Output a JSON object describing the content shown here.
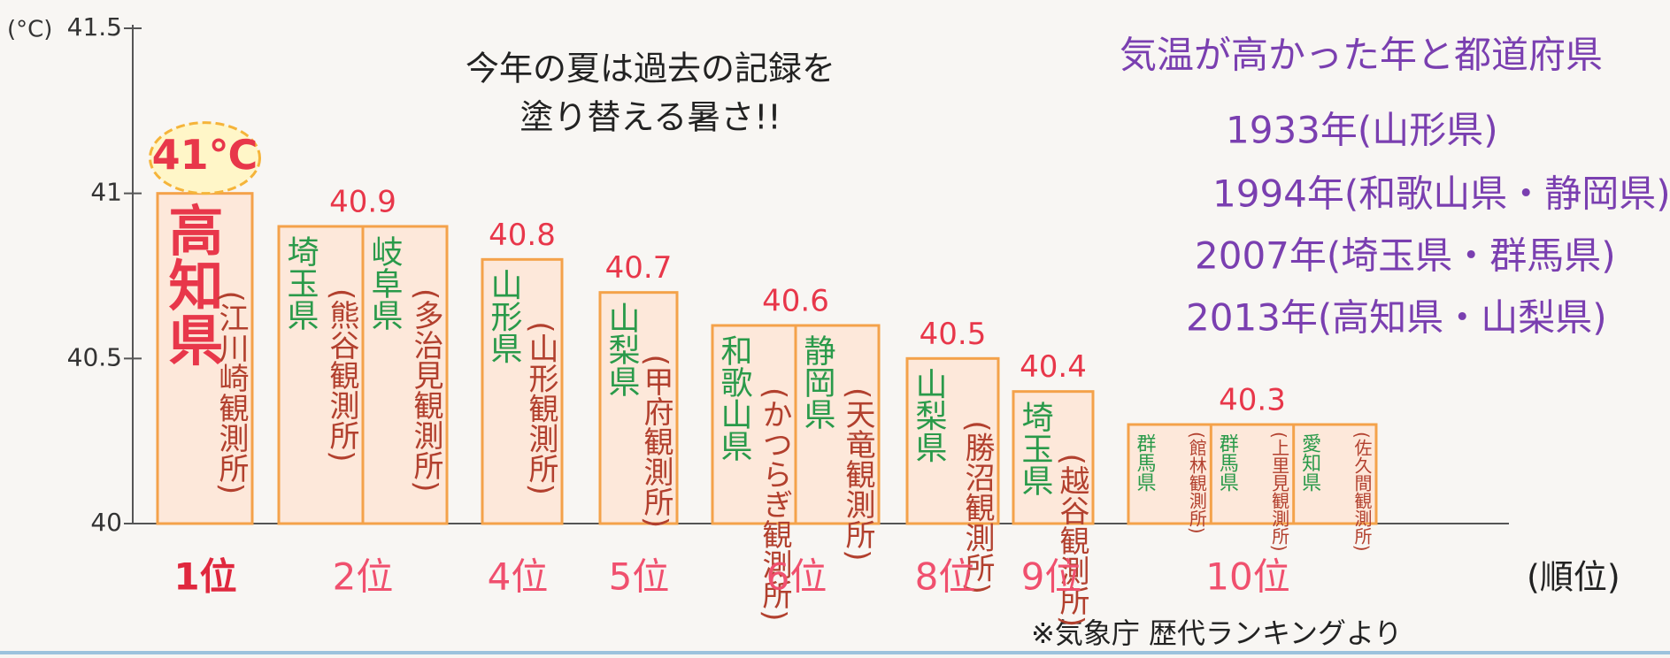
{
  "chart_data": {
    "type": "bar",
    "unit_label": "(°C)",
    "annotation": [
      "今年の夏は過去の記録を",
      "塗り替える暑さ!!"
    ],
    "categories": [
      "1位",
      "2位",
      "4位",
      "5位",
      "6位",
      "8位",
      "9位",
      "10位"
    ],
    "values": [
      41,
      40.9,
      40.8,
      40.7,
      40.6,
      40.5,
      40.4,
      40.3
    ],
    "value_labels": [
      "41℃",
      "40.9",
      "40.8",
      "40.7",
      "40.6",
      "40.5",
      "40.4",
      "40.3"
    ],
    "stations": [
      [
        {
          "prefecture": "高知県",
          "station": "(江川崎観測所)"
        }
      ],
      [
        {
          "prefecture": "埼玉県",
          "station": "(熊谷観測所)"
        },
        {
          "prefecture": "岐阜県",
          "station": "(多治見観測所)"
        }
      ],
      [
        {
          "prefecture": "山形県",
          "station": "(山形観測所)"
        }
      ],
      [
        {
          "prefecture": "山梨県",
          "station": "(甲府観測所)"
        }
      ],
      [
        {
          "prefecture": "和歌山県",
          "station": "(かつらぎ観測所)"
        },
        {
          "prefecture": "静岡県",
          "station": "(天竜観測所)"
        }
      ],
      [
        {
          "prefecture": "山梨県",
          "station": "(勝沼観測所)"
        }
      ],
      [
        {
          "prefecture": "埼玉県",
          "station": "(越谷観測所)"
        }
      ],
      [
        {
          "prefecture": "群馬県",
          "station": "(館林観測所)"
        },
        {
          "prefecture": "群馬県",
          "station": "(上里見観測所)"
        },
        {
          "prefecture": "愛知県",
          "station": "(佐久間観測所)"
        }
      ]
    ],
    "x_label": "(順位)",
    "ylim": [
      40,
      41.5
    ],
    "yticks": [
      40,
      40.5,
      41,
      41.5
    ],
    "colors": {
      "bar": "#fde8da",
      "bar_edge": "#f4a24a",
      "value": "#e8374a",
      "prefecture": "#2a9a4a",
      "station": "#b2402e",
      "rank": "#f0506e",
      "side": "#7a3fb0"
    },
    "side_title": "気温が高かった年と都道府県",
    "side_items": [
      "1933年(山形県)",
      "1994年(和歌山県・静岡県)",
      "2007年(埼玉県・群馬県)",
      "2013年(高知県・山梨県)"
    ],
    "source": "※気象庁 歴代ランキングより"
  }
}
